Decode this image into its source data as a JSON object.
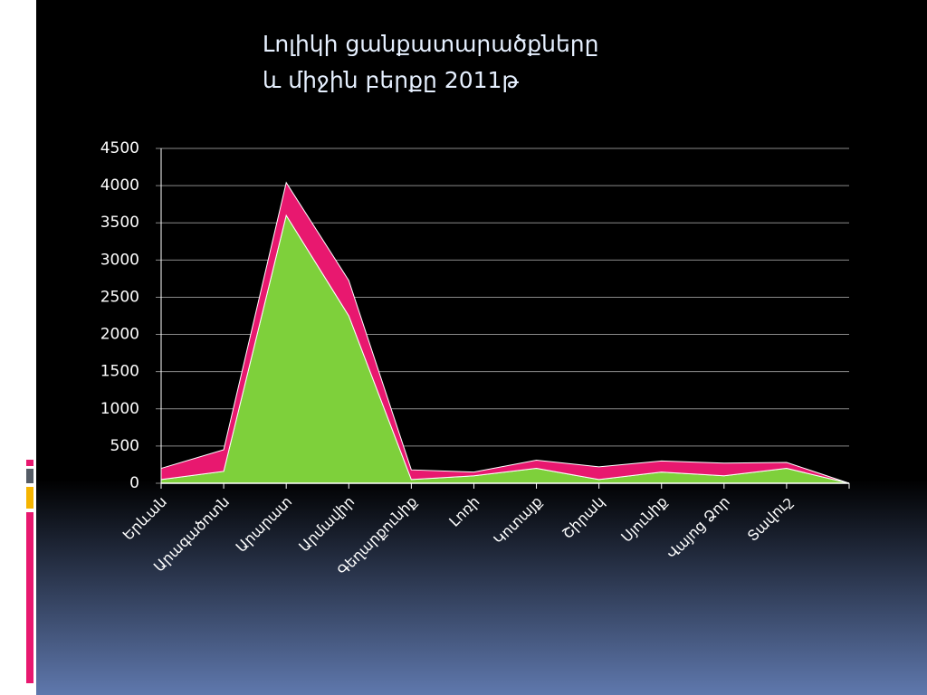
{
  "chart_data": {
    "type": "stacked-area",
    "title": [
      "Լոլիկի  ցանքատարածքները",
      "և  միջին  բերքը  2011թ"
    ],
    "categories": [
      "Երևան",
      "Արագածոտն",
      "Արարատ",
      "Արմավիր",
      "Գեղարքունիք",
      "Լոռի",
      "Կոտայք",
      "Շիրակ",
      "Սյունիք",
      "Վայոց Ձոր",
      "Տավուշ",
      null
    ],
    "series": [
      {
        "color": "#7ed03b",
        "values": [
          50,
          160,
          3600,
          2250,
          50,
          100,
          200,
          50,
          150,
          100,
          200,
          0
        ]
      },
      {
        "color": "#e8186f",
        "values": [
          150,
          290,
          440,
          475,
          130,
          50,
          110,
          170,
          150,
          170,
          80,
          0
        ]
      }
    ],
    "ylim": [
      0,
      4500
    ],
    "yticks": [
      0,
      500,
      1000,
      1500,
      2000,
      2500,
      3000,
      3500,
      4000,
      4500
    ],
    "grid": true
  }
}
